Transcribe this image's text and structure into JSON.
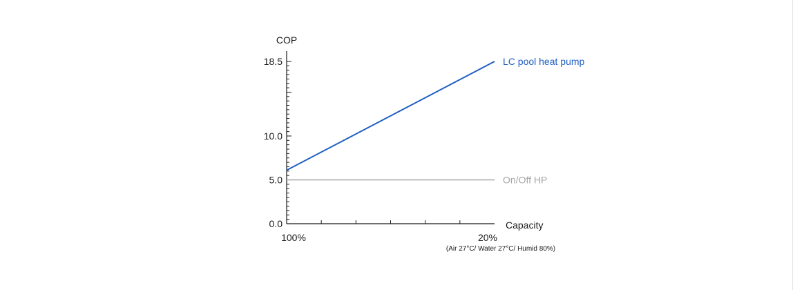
{
  "chart_data": {
    "type": "line",
    "ylabel": "COP",
    "xlabel": "Capacity",
    "xlabel_note": "(Air 27°C/ Water 27°C/ Humid 80%)",
    "x_tick_labels": [
      {
        "x": 100,
        "label": "100%"
      },
      {
        "x": 20,
        "label": "20%"
      }
    ],
    "y_tick_labels": [
      {
        "y": 0,
        "label": "0.0"
      },
      {
        "y": 5,
        "label": "5.0"
      },
      {
        "y": 10,
        "label": "10.0"
      },
      {
        "y": 18.5,
        "label": "18.5"
      }
    ],
    "xlim": [
      100,
      20
    ],
    "ylim": [
      0,
      18.5
    ],
    "series": [
      {
        "name": "LC pool heat pump",
        "color": "#1f5fc2",
        "x": [
          100,
          20
        ],
        "y": [
          6.1,
          18.5
        ]
      },
      {
        "name": "On/Off HP",
        "color": "#a6a6a6",
        "x": [
          100,
          20
        ],
        "y": [
          5.0,
          5.0
        ]
      }
    ]
  }
}
